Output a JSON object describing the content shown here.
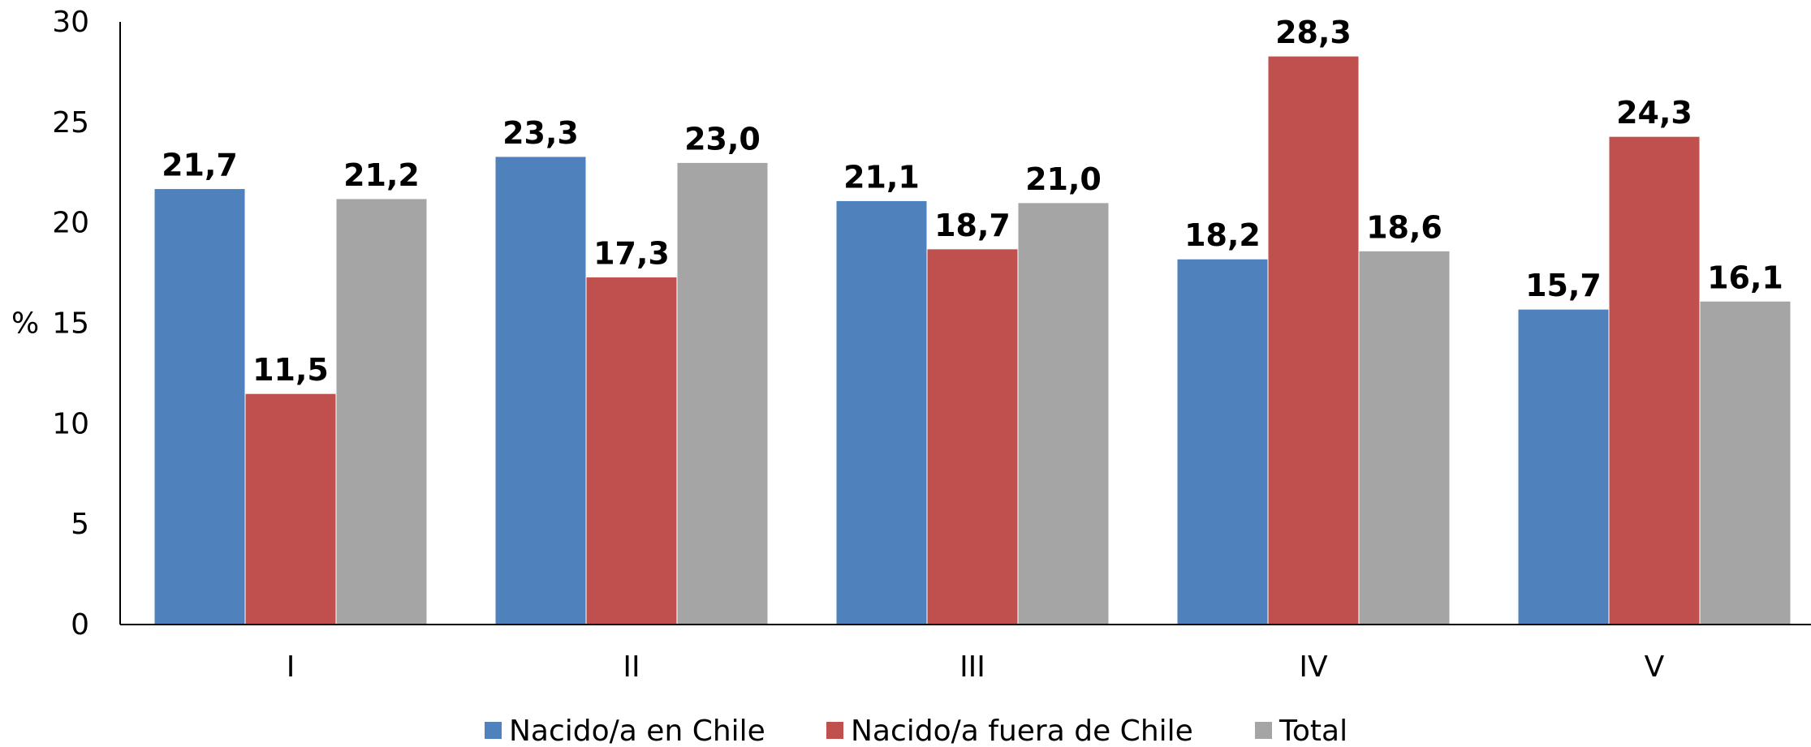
{
  "chart_data": {
    "type": "bar",
    "title": "",
    "xlabel": "",
    "ylabel": "%",
    "ylim": [
      0,
      30
    ],
    "yticks": [
      0,
      5,
      10,
      15,
      20,
      25,
      30
    ],
    "grid": false,
    "legend_position": "bottom",
    "categories": [
      "I",
      "II",
      "III",
      "IV",
      "V"
    ],
    "series": [
      {
        "name": "Nacido/a en Chile",
        "color": "#4f81bd",
        "values": [
          21.7,
          23.3,
          21.1,
          18.2,
          15.7
        ],
        "labels": [
          "21,7",
          "23,3",
          "21,1",
          "18,2",
          "15,7"
        ]
      },
      {
        "name": "Nacido/a fuera de Chile",
        "color": "#c0504d",
        "values": [
          11.5,
          17.3,
          18.7,
          28.3,
          24.3
        ],
        "labels": [
          "11,5",
          "17,3",
          "18,7",
          "28,3",
          "24,3"
        ]
      },
      {
        "name": "Total",
        "color": "#a5a5a5",
        "values": [
          21.2,
          23.0,
          21.0,
          18.6,
          16.1
        ],
        "labels": [
          "21,2",
          "23,0",
          "21,0",
          "18,6",
          "16,1"
        ]
      }
    ]
  }
}
